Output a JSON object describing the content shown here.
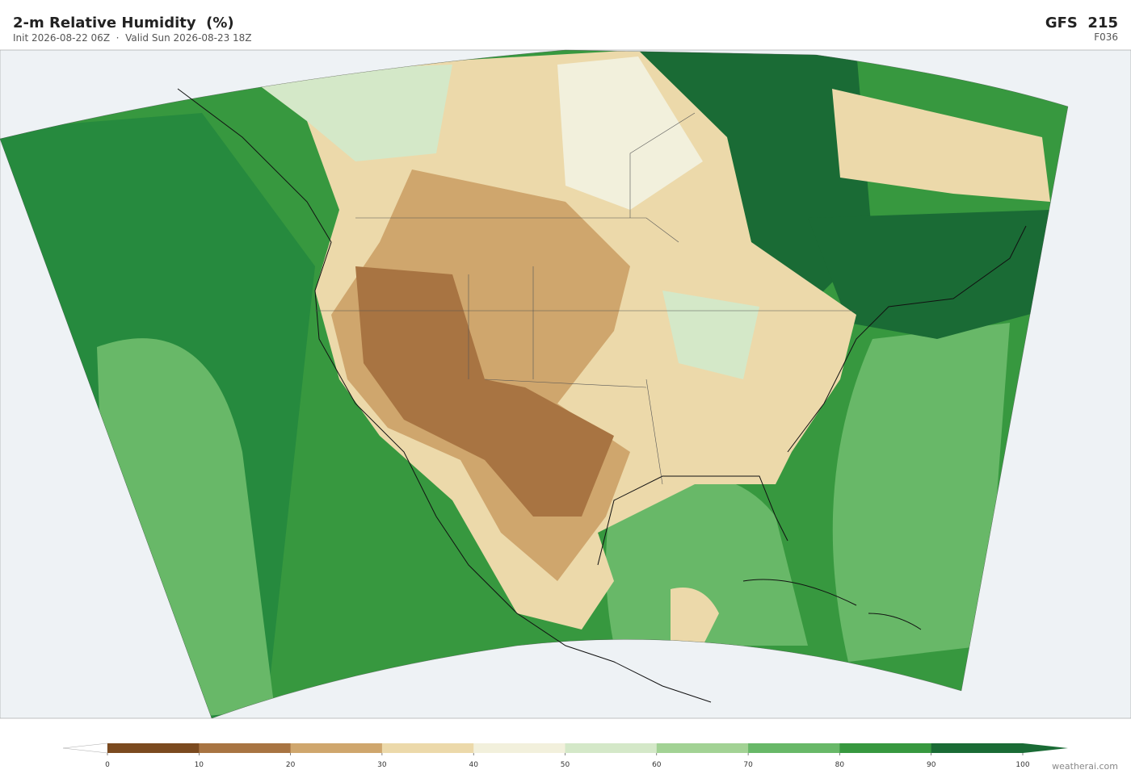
{
  "header": {
    "title": "2-m Relative Humidity  (%)",
    "subtitle": "Init 2026-08-22 06Z  ·  Valid Sun 2026-08-23 18Z",
    "model": "GFS  215",
    "forecast_hour": "F036"
  },
  "colorbar": {
    "ticks": [
      0,
      10,
      20,
      30,
      40,
      50,
      60,
      70,
      80,
      90,
      100
    ],
    "colors": [
      "#7b4a1f",
      "#a87442",
      "#cfa66d",
      "#ecd9aa",
      "#f2f0dc",
      "#d4e8c8",
      "#a2d294",
      "#68b868",
      "#37983f",
      "#1a6b35"
    ],
    "under_color": "#ffffff",
    "over_color": "#1a6b35"
  },
  "credit": "weatherai.com"
}
